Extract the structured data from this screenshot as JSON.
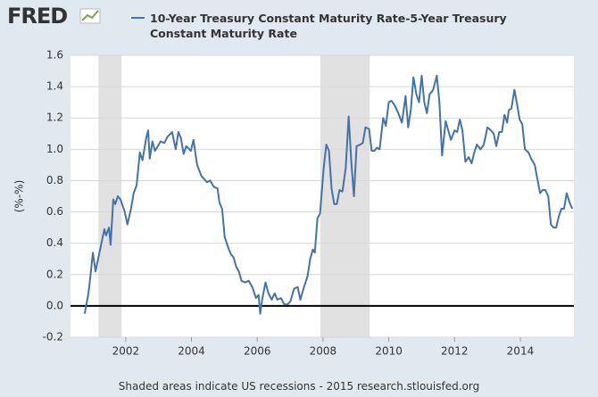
{
  "logo": "FRED",
  "chart_data": {
    "type": "line",
    "title": "10-Year Treasury Constant Maturity Rate-5-Year Treasury Constant Maturity Rate",
    "y_label": "(%-%)",
    "footer": "Shaded areas indicate US recessions - 2015 research.stlouisfed.org",
    "x": [
      2000.75,
      2000.84,
      2000.89,
      2001.0,
      2001.08,
      2001.21,
      2001.35,
      2001.4,
      2001.49,
      2001.54,
      2001.62,
      2001.68,
      2001.76,
      2001.84,
      2001.97,
      2002.05,
      2002.16,
      2002.24,
      2002.33,
      2002.43,
      2002.51,
      2002.62,
      2002.68,
      2002.73,
      2002.81,
      2002.89,
      2003.06,
      2003.17,
      2003.27,
      2003.41,
      2003.52,
      2003.6,
      2003.68,
      2003.76,
      2003.84,
      2003.98,
      2004.06,
      2004.17,
      2004.3,
      2004.47,
      2004.57,
      2004.68,
      2004.79,
      2004.85,
      2004.93,
      2005.01,
      2005.12,
      2005.2,
      2005.28,
      2005.36,
      2005.44,
      2005.52,
      2005.63,
      2005.74,
      2005.85,
      2005.96,
      2006.04,
      2006.09,
      2006.15,
      2006.25,
      2006.34,
      2006.44,
      2006.53,
      2006.61,
      2006.72,
      2006.82,
      2006.93,
      2007.01,
      2007.12,
      2007.23,
      2007.31,
      2007.42,
      2007.53,
      2007.61,
      2007.69,
      2007.75,
      2007.83,
      2007.91,
      2008.02,
      2008.1,
      2008.18,
      2008.26,
      2008.34,
      2008.42,
      2008.5,
      2008.59,
      2008.69,
      2008.78,
      2008.86,
      2008.94,
      2009.02,
      2009.13,
      2009.21,
      2009.29,
      2009.4,
      2009.48,
      2009.56,
      2009.64,
      2009.72,
      2009.83,
      2009.91,
      2010.0,
      2010.08,
      2010.18,
      2010.29,
      2010.4,
      2010.51,
      2010.59,
      2010.67,
      2010.75,
      2010.84,
      2010.92,
      2011.0,
      2011.08,
      2011.16,
      2011.24,
      2011.35,
      2011.46,
      2011.54,
      2011.62,
      2011.73,
      2011.81,
      2011.89,
      2012.0,
      2012.08,
      2012.16,
      2012.24,
      2012.33,
      2012.43,
      2012.52,
      2012.6,
      2012.68,
      2012.79,
      2012.89,
      2013.0,
      2013.11,
      2013.19,
      2013.27,
      2013.36,
      2013.44,
      2013.52,
      2013.6,
      2013.65,
      2013.73,
      2013.82,
      2013.9,
      2013.98,
      2014.06,
      2014.14,
      2014.25,
      2014.33,
      2014.44,
      2014.52,
      2014.6,
      2014.68,
      2014.76,
      2014.85,
      2014.93,
      2015.01,
      2015.09,
      2015.17,
      2015.25,
      2015.33,
      2015.41,
      2015.5,
      2015.58
    ],
    "series": [
      {
        "name": "10-Year Treasury Constant Maturity Rate-5-Year Treasury Constant Maturity Rate",
        "color": "#4572a7",
        "values": [
          -0.05,
          0.05,
          0.12,
          0.34,
          0.22,
          0.35,
          0.49,
          0.45,
          0.5,
          0.39,
          0.68,
          0.65,
          0.7,
          0.68,
          0.6,
          0.52,
          0.62,
          0.72,
          0.77,
          0.98,
          0.93,
          1.07,
          1.12,
          0.94,
          1.05,
          0.99,
          1.05,
          1.04,
          1.08,
          1.11,
          1.0,
          1.11,
          1.07,
          0.97,
          1.02,
          0.99,
          1.06,
          0.9,
          0.83,
          0.79,
          0.8,
          0.76,
          0.75,
          0.66,
          0.62,
          0.44,
          0.37,
          0.33,
          0.31,
          0.25,
          0.22,
          0.16,
          0.15,
          0.16,
          0.12,
          0.05,
          0.07,
          -0.05,
          0.04,
          0.15,
          0.08,
          0.04,
          0.08,
          0.04,
          0.05,
          0.01,
          0.01,
          0.03,
          0.11,
          0.12,
          0.04,
          0.12,
          0.19,
          0.3,
          0.36,
          0.34,
          0.56,
          0.59,
          0.88,
          1.03,
          0.99,
          0.75,
          0.65,
          0.65,
          0.74,
          0.73,
          0.88,
          1.21,
          0.92,
          0.7,
          1.02,
          1.03,
          1.04,
          1.14,
          1.13,
          0.99,
          0.99,
          1.01,
          1.0,
          1.2,
          1.15,
          1.3,
          1.31,
          1.28,
          1.23,
          1.17,
          1.34,
          1.14,
          1.25,
          1.46,
          1.35,
          1.3,
          1.47,
          1.3,
          1.23,
          1.35,
          1.38,
          1.47,
          1.3,
          0.96,
          1.18,
          1.12,
          1.06,
          1.12,
          1.11,
          1.19,
          1.12,
          0.92,
          0.95,
          0.91,
          0.98,
          1.03,
          1.0,
          1.03,
          1.14,
          1.12,
          1.1,
          1.02,
          1.11,
          1.11,
          1.22,
          1.17,
          1.25,
          1.26,
          1.38,
          1.29,
          1.19,
          1.16,
          1.0,
          0.98,
          0.94,
          0.9,
          0.81,
          0.72,
          0.74,
          0.74,
          0.7,
          0.52,
          0.5,
          0.5,
          0.57,
          0.62,
          0.62,
          0.72,
          0.66,
          0.62
        ]
      }
    ],
    "recessions": [
      [
        2001.17,
        2001.87
      ],
      [
        2007.92,
        2009.42
      ]
    ],
    "xlim": [
      2000.32,
      2015.63
    ],
    "xticks": [
      2002,
      2004,
      2006,
      2008,
      2010,
      2012,
      2014
    ],
    "ylim": [
      -0.2,
      1.6
    ],
    "yticks": [
      -0.2,
      {
        "value": 0,
        "label": "0.0"
      },
      0.2,
      0.4,
      0.6,
      0.8,
      {
        "value": 1,
        "label": "1.0"
      },
      1.2,
      1.4,
      1.6
    ],
    "grid": true
  }
}
